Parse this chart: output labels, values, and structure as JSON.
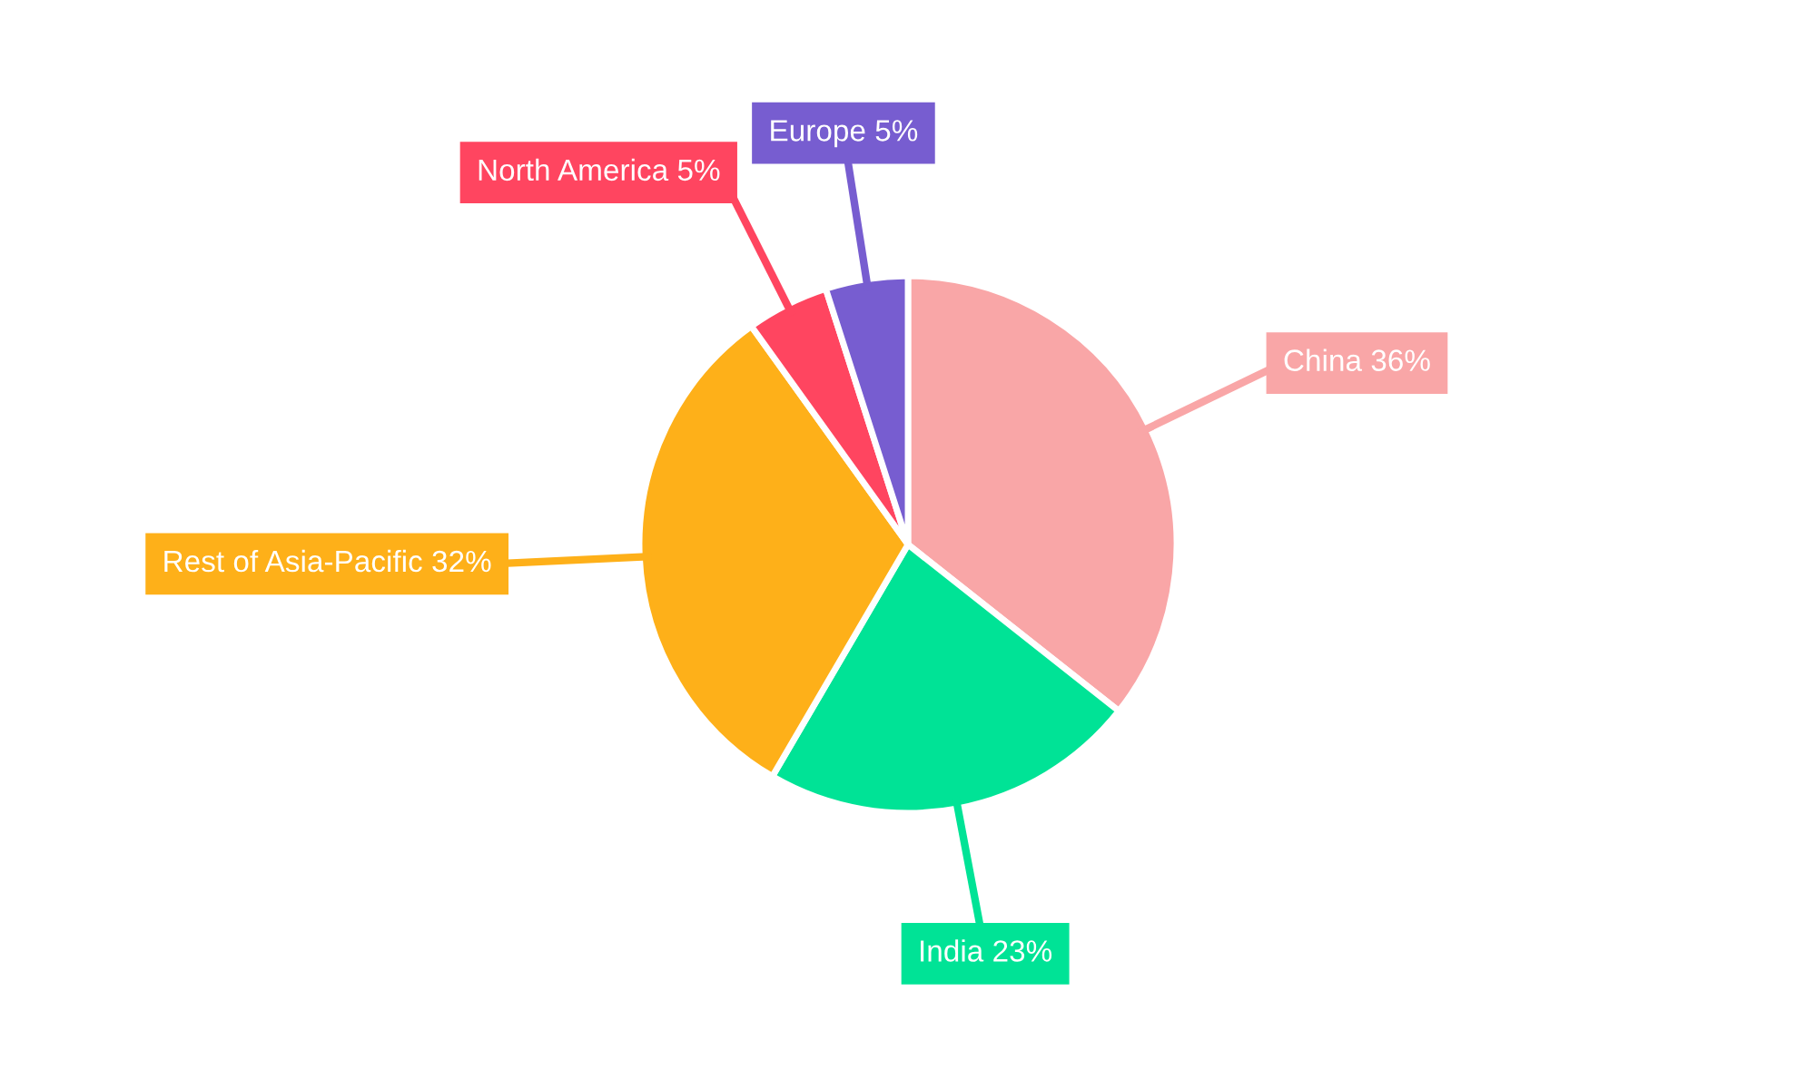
{
  "chart_data": {
    "type": "pie",
    "categories": [
      "China",
      "India",
      "Rest of Asia-Pacific",
      "North America",
      "Europe"
    ],
    "values": [
      36,
      23,
      32,
      5,
      5
    ],
    "value_labels": [
      "36%",
      "23%",
      "32%",
      "5%",
      "5%"
    ],
    "colors": [
      "#f9a6a7",
      "#00e396",
      "#feb019",
      "#ff4560",
      "#775dd0"
    ],
    "legend": false
  }
}
